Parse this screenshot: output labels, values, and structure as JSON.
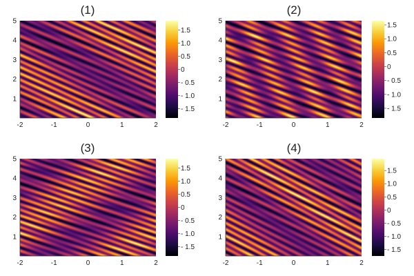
{
  "figure": {
    "background": "#ffffff",
    "colormap": "inferno",
    "colormap_stops": [
      "#000004",
      "#1b0c41",
      "#4a0c6b",
      "#781c6d",
      "#a52c60",
      "#cf4446",
      "#ed6925",
      "#fb9b06",
      "#f7d13d",
      "#fcffa4"
    ]
  },
  "chart_data": [
    {
      "type": "heatmap",
      "title": "(1)",
      "xlim": [
        -2,
        2
      ],
      "ylim": [
        0,
        5
      ],
      "xticks": [
        "-2",
        "-1",
        "0",
        "1",
        "2"
      ],
      "yticks": [
        "1",
        "2",
        "3",
        "4",
        "5"
      ],
      "colorbar": {
        "range": [
          -1.85,
          1.85
        ],
        "ticks": [
          "1.5",
          "1.0",
          "0.5",
          "0",
          "- 0.5",
          "- 1.0",
          "- 1.5"
        ]
      },
      "field": {
        "stripe_slope": -0.26,
        "stripe_freq": 3.1,
        "diag_slope": -1.25,
        "diag_freq": 1.2,
        "phase": 0.0
      }
    },
    {
      "type": "heatmap",
      "title": "(2)",
      "xlim": [
        -2,
        2
      ],
      "ylim": [
        0,
        5
      ],
      "xticks": [
        "-2",
        "-1",
        "0",
        "1",
        "2"
      ],
      "yticks": [
        "1",
        "2",
        "3",
        "4",
        "5"
      ],
      "colorbar": {
        "range": [
          -1.85,
          1.65
        ],
        "ticks": [
          "1.5",
          "1.0",
          "0.5",
          "0",
          "- 0.5",
          "- 1.0",
          "- 1.5"
        ]
      },
      "field": {
        "stripe_slope": -0.22,
        "stripe_freq": 2.9,
        "diag_slope": -4.0,
        "diag_freq": 1.6,
        "phase": 1.1
      }
    },
    {
      "type": "heatmap",
      "title": "(3)",
      "xlim": [
        -2,
        2
      ],
      "ylim": [
        0,
        5
      ],
      "xticks": [
        "-2",
        "-1",
        "0",
        "1",
        "2"
      ],
      "yticks": [
        "1",
        "2",
        "3",
        "4",
        "5"
      ],
      "colorbar": {
        "range": [
          -1.85,
          1.85
        ],
        "ticks": [
          "1.5",
          "1.0",
          "0.5",
          "0",
          "- 0.5",
          "- 1.0",
          "- 1.5"
        ]
      },
      "field": {
        "stripe_slope": -0.2,
        "stripe_freq": 3.3,
        "diag_slope": 1.1,
        "diag_freq": 1.4,
        "phase": 2.3
      }
    },
    {
      "type": "heatmap",
      "title": "(4)",
      "xlim": [
        -2,
        2
      ],
      "ylim": [
        0,
        5
      ],
      "xticks": [
        "-2",
        "-1",
        "0",
        "1",
        "2"
      ],
      "yticks": [
        "1",
        "2",
        "3",
        "4",
        "5"
      ],
      "colorbar": {
        "range": [
          -1.75,
          1.95
        ],
        "ticks": [
          "1.5",
          "1.0",
          "0.5",
          "0",
          "- 0.5",
          "- 1.0",
          "- 1.5"
        ]
      },
      "field": {
        "stripe_slope": -0.3,
        "stripe_freq": 3.0,
        "diag_slope": -1.4,
        "diag_freq": 1.3,
        "phase": 3.7
      }
    }
  ]
}
